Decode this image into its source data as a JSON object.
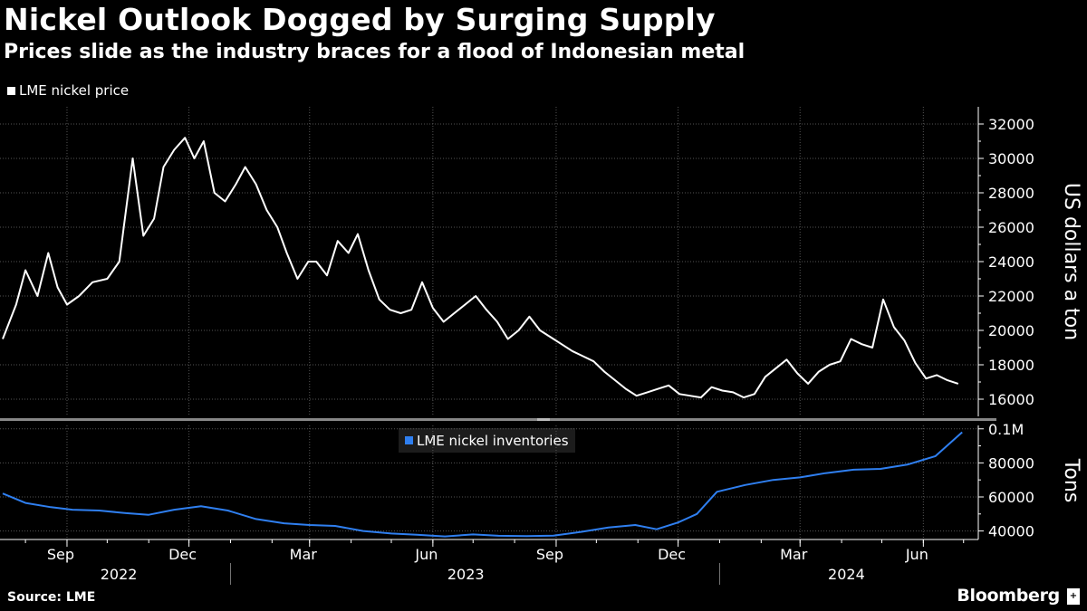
{
  "header": {
    "title": "Nickel Outlook Dogged by Surging Supply",
    "subtitle": "Prices slide as the industry braces for a flood of Indonesian metal"
  },
  "footer": {
    "source": "Source: LME",
    "brand": "Bloomberg"
  },
  "colors": {
    "price_line": "#ffffff",
    "inventory_line": "#2f7ff0",
    "grid": "#555555",
    "background": "#000000"
  },
  "chart_data": [
    {
      "type": "line",
      "title": "Nickel Outlook Dogged by Surging Supply",
      "subtitle": "Prices slide as the industry braces for a flood of Indonesian metal",
      "ylabel": "US dollars a ton",
      "ylim": [
        15000,
        33000
      ],
      "yticks": [
        "16000",
        "18000",
        "20000",
        "22000",
        "24000",
        "26000",
        "28000",
        "30000",
        "32000"
      ],
      "grid": true,
      "legend_position": "top-left",
      "series": [
        {
          "name": "LME nickel price",
          "color": "#ffffff",
          "x": [
            "2022-07-15",
            "2022-07-25",
            "2022-08-01",
            "2022-08-10",
            "2022-08-18",
            "2022-08-25",
            "2022-09-01",
            "2022-09-10",
            "2022-09-20",
            "2022-10-01",
            "2022-10-10",
            "2022-10-20",
            "2022-10-28",
            "2022-11-05",
            "2022-11-12",
            "2022-11-20",
            "2022-11-28",
            "2022-12-05",
            "2022-12-12",
            "2022-12-20",
            "2022-12-28",
            "2023-01-05",
            "2023-01-12",
            "2023-01-20",
            "2023-01-28",
            "2023-02-05",
            "2023-02-12",
            "2023-02-20",
            "2023-02-28",
            "2023-03-06",
            "2023-03-14",
            "2023-03-22",
            "2023-03-30",
            "2023-04-06",
            "2023-04-14",
            "2023-04-22",
            "2023-04-30",
            "2023-05-08",
            "2023-05-16",
            "2023-05-24",
            "2023-06-01",
            "2023-06-09",
            "2023-06-17",
            "2023-06-25",
            "2023-07-03",
            "2023-07-11",
            "2023-07-19",
            "2023-07-27",
            "2023-08-04",
            "2023-08-12",
            "2023-08-20",
            "2023-08-28",
            "2023-09-05",
            "2023-09-13",
            "2023-09-21",
            "2023-09-29",
            "2023-10-07",
            "2023-10-15",
            "2023-10-23",
            "2023-10-31",
            "2023-11-08",
            "2023-11-16",
            "2023-11-24",
            "2023-12-02",
            "2023-12-10",
            "2023-12-18",
            "2023-12-26",
            "2024-01-03",
            "2024-01-11",
            "2024-01-19",
            "2024-01-27",
            "2024-02-04",
            "2024-02-12",
            "2024-02-20",
            "2024-02-28",
            "2024-03-07",
            "2024-03-15",
            "2024-03-23",
            "2024-03-31",
            "2024-04-08",
            "2024-04-16",
            "2024-04-24",
            "2024-05-02",
            "2024-05-10",
            "2024-05-18",
            "2024-05-26",
            "2024-06-03",
            "2024-06-11",
            "2024-06-19",
            "2024-06-27"
          ],
          "values": [
            19500,
            21500,
            23500,
            22000,
            24500,
            22500,
            21500,
            22000,
            22800,
            23000,
            24000,
            30000,
            25500,
            26500,
            29500,
            30500,
            31200,
            30000,
            31000,
            28000,
            27500,
            28500,
            29500,
            28500,
            27000,
            26000,
            24500,
            23000,
            24000,
            24000,
            23200,
            25200,
            24500,
            25600,
            23500,
            21800,
            21200,
            21000,
            21200,
            22800,
            21300,
            20500,
            21000,
            21500,
            22000,
            21200,
            20500,
            19500,
            20000,
            20800,
            20000,
            19600,
            19200,
            18800,
            18500,
            18200,
            17600,
            17100,
            16600,
            16200,
            16400,
            16600,
            16800,
            16300,
            16200,
            16100,
            16700,
            16500,
            16400,
            16100,
            16300,
            17300,
            17800,
            18300,
            17500,
            16900,
            17600,
            18000,
            18200,
            19500,
            19200,
            19000,
            21800,
            20200,
            19400,
            18100,
            17200,
            17400,
            17100,
            16900
          ]
        }
      ]
    },
    {
      "type": "line",
      "ylabel": "Tons",
      "ylim": [
        35000,
        102000
      ],
      "yticks": [
        "40000",
        "60000",
        "80000",
        "0.1M"
      ],
      "grid": true,
      "legend_position": "top-center",
      "x_tick_labels": [
        "Sep",
        "Dec",
        "Mar",
        "Jun",
        "Sep",
        "Dec",
        "Mar",
        "Jun"
      ],
      "x_year_labels": [
        "2022",
        "2023",
        "2024"
      ],
      "series": [
        {
          "name": "LME nickel inventories",
          "color": "#2f7ff0",
          "x": [
            "2022-07-15",
            "2022-08-01",
            "2022-08-20",
            "2022-09-05",
            "2022-09-25",
            "2022-10-15",
            "2022-11-01",
            "2022-11-20",
            "2022-12-10",
            "2022-12-30",
            "2023-01-20",
            "2023-02-10",
            "2023-03-01",
            "2023-03-20",
            "2023-04-10",
            "2023-05-01",
            "2023-05-20",
            "2023-06-10",
            "2023-07-01",
            "2023-07-20",
            "2023-08-10",
            "2023-08-30",
            "2023-09-20",
            "2023-10-10",
            "2023-10-30",
            "2023-11-15",
            "2023-12-01",
            "2023-12-15",
            "2023-12-30",
            "2024-01-20",
            "2024-02-10",
            "2024-03-01",
            "2024-03-20",
            "2024-04-10",
            "2024-04-30",
            "2024-05-20",
            "2024-06-10",
            "2024-06-30"
          ],
          "values": [
            62000,
            56500,
            54000,
            52500,
            52000,
            50500,
            49500,
            52500,
            54500,
            52000,
            47000,
            44500,
            43500,
            43000,
            40000,
            38500,
            37800,
            36800,
            38000,
            37200,
            37000,
            37300,
            39500,
            42000,
            43500,
            41000,
            45000,
            50000,
            63000,
            67000,
            70000,
            71500,
            74000,
            76000,
            76500,
            79000,
            84000,
            98000
          ]
        }
      ]
    }
  ]
}
